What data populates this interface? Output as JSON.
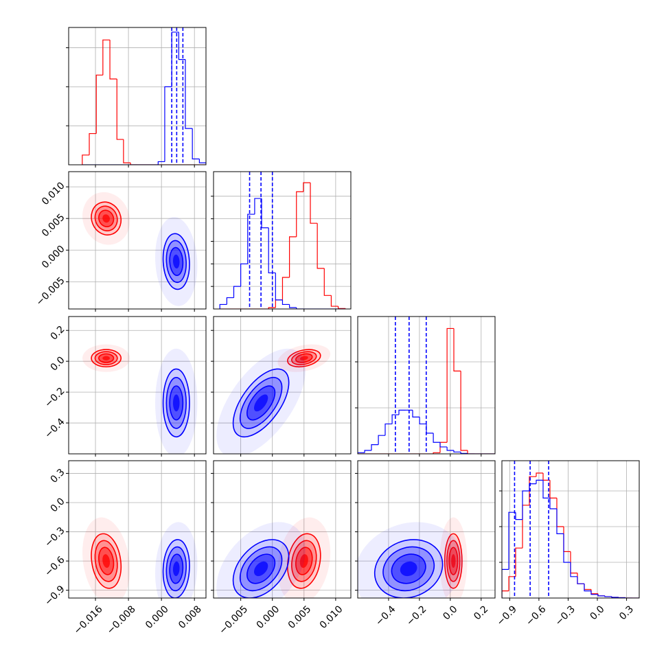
{
  "chart_data": {
    "type": "corner",
    "grid": true,
    "params": [
      {
        "lim": [
          -0.0225,
          0.0108
        ],
        "ticks": [
          {
            "value": -0.016,
            "label": "−0.016"
          },
          {
            "value": -0.008,
            "label": "−0.008"
          },
          {
            "value": 0.0,
            "label": "0.000"
          },
          {
            "value": 0.008,
            "label": "0.008"
          }
        ],
        "bins": [
          -0.0192,
          -0.0175,
          -0.0158,
          -0.0142,
          -0.0125,
          -0.0108,
          -0.0092,
          -0.0075,
          -0.0058,
          -0.0042,
          -0.0025,
          -0.0008,
          0.0008,
          0.0025,
          0.0042,
          0.0058,
          0.0075,
          0.0092,
          0.0108
        ],
        "hist_ylim": [
          0,
          3520
        ],
        "hist_yticks": [
          1000,
          2000,
          3000
        ]
      },
      {
        "lim": [
          -0.0093,
          0.0124
        ],
        "ticks": [
          {
            "value": -0.005,
            "label": "−0.005"
          },
          {
            "value": 0.0,
            "label": "0.000"
          },
          {
            "value": 0.005,
            "label": "0.005"
          },
          {
            "value": 0.01,
            "label": "0.010"
          }
        ],
        "bins": [
          -0.0083,
          -0.0072,
          -0.0061,
          -0.005,
          -0.0039,
          -0.0028,
          -0.0017,
          -0.0006,
          0.0005,
          0.0016,
          0.0027,
          0.0038,
          0.0049,
          0.006,
          0.0071,
          0.0082,
          0.0093,
          0.0104,
          0.0115
        ],
        "hist_ylim": [
          0,
          3045
        ],
        "hist_yticks": [
          500,
          1000,
          1500,
          2000,
          2500
        ]
      },
      {
        "lim": [
          -0.6,
          0.29
        ],
        "ticks": [
          {
            "value": -0.4,
            "label": "−0.4"
          },
          {
            "value": -0.2,
            "label": "−0.2"
          },
          {
            "value": 0.0,
            "label": "0.0"
          },
          0.2
        ],
        "bins": [
          -0.6,
          -0.555,
          -0.511,
          -0.466,
          -0.422,
          -0.377,
          -0.333,
          -0.288,
          -0.244,
          -0.199,
          -0.155,
          -0.11,
          -0.066,
          -0.021,
          0.023,
          0.068,
          0.112,
          0.157,
          0.201,
          0.246,
          0.29
        ],
        "hist_ylim": [
          0,
          5970
        ],
        "hist_yticks": [
          2000,
          4000
        ]
      },
      {
        "lim": [
          -0.98,
          0.43
        ],
        "ticks": [
          {
            "value": -0.9,
            "label": "−0.9"
          },
          {
            "value": -0.6,
            "label": "−0.6"
          },
          {
            "value": -0.3,
            "label": "−0.3"
          },
          {
            "value": 0.0,
            "label": "0.0"
          },
          0.3
        ],
        "bins": [
          -0.98,
          -0.9095,
          -0.839,
          -0.7685,
          -0.698,
          -0.6275,
          -0.557,
          -0.4865,
          -0.416,
          -0.3455,
          -0.275,
          -0.2045,
          -0.134,
          -0.0635,
          0.007,
          0.0775,
          0.148,
          0.2185,
          0.289,
          0.3595,
          0.43
        ],
        "hist_ylim": [
          0,
          1923
        ],
        "hist_yticks": [
          500,
          1000,
          1500
        ]
      }
    ],
    "series": [
      {
        "color": "#ff0000",
        "center": [
          -0.0134,
          0.005,
          0.02,
          -0.6
        ],
        "sigma": [
          0.0018,
          0.0013,
          0.028,
          0.14
        ],
        "corr": [
          [
            -0.1
          ],
          [
            0.0,
            0.3
          ],
          [
            -0.2,
            0.2,
            0.0
          ]
        ],
        "counts": [
          [
            250,
            800,
            2300,
            3200,
            2200,
            650,
            50,
            0,
            0,
            0,
            0,
            0,
            0,
            0,
            0,
            0,
            0,
            0
          ],
          [
            0,
            0,
            0,
            0,
            0,
            0,
            0,
            30,
            200,
            700,
            1600,
            2600,
            2800,
            1900,
            900,
            300,
            60,
            10
          ],
          [
            0,
            0,
            0,
            0,
            0,
            0,
            0,
            0,
            0,
            0,
            0,
            50,
            500,
            5450,
            3600,
            150,
            0,
            0,
            0,
            0
          ],
          [
            100,
            300,
            700,
            1300,
            1700,
            1750,
            1650,
            1400,
            1000,
            650,
            350,
            200,
            120,
            60,
            30,
            20,
            10,
            5,
            0,
            0
          ]
        ]
      },
      {
        "color": "#0000ff",
        "center": [
          0.0036,
          -0.0018,
          -0.27,
          -0.68
        ],
        "sigma": [
          0.0016,
          0.0022,
          0.11,
          0.15
        ],
        "corr": [
          [
            -0.1
          ],
          [
            0.0,
            0.6
          ],
          [
            0.1,
            0.4,
            0.15
          ]
        ],
        "counts": [
          [
            0,
            0,
            0,
            0,
            0,
            0,
            0,
            0,
            0,
            0,
            0,
            80,
            2000,
            3400,
            2700,
            930,
            150,
            50
          ],
          [
            100,
            250,
            500,
            1000,
            2100,
            2450,
            1800,
            800,
            200,
            100,
            30,
            0,
            0,
            0,
            0,
            0,
            0,
            0
          ],
          [
            50,
            150,
            400,
            800,
            1300,
            1700,
            1900,
            1900,
            1600,
            1300,
            900,
            500,
            300,
            150,
            80,
            20,
            0,
            0,
            0,
            0
          ],
          [
            400,
            1200,
            1100,
            1500,
            1600,
            1650,
            1400,
            1250,
            900,
            500,
            300,
            200,
            100,
            50,
            30,
            20,
            10,
            5,
            0,
            0
          ]
        ],
        "quantiles": [
          [
            0.0025,
            0.0037,
            0.0052
          ],
          [
            -0.0036,
            -0.0018,
            0.0
          ],
          [
            -0.356,
            -0.267,
            -0.156
          ],
          [
            -0.85,
            -0.69,
            -0.5
          ]
        ]
      }
    ]
  }
}
